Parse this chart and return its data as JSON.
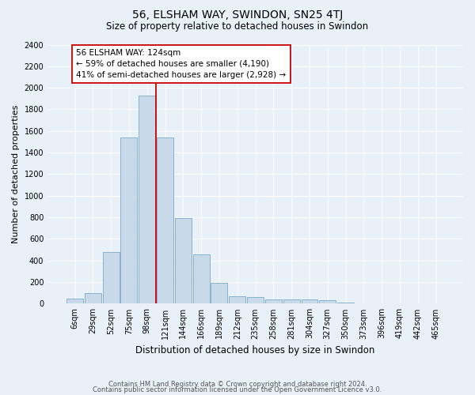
{
  "title": "56, ELSHAM WAY, SWINDON, SN25 4TJ",
  "subtitle": "Size of property relative to detached houses in Swindon",
  "xlabel": "Distribution of detached houses by size in Swindon",
  "ylabel": "Number of detached properties",
  "footer1": "Contains HM Land Registry data © Crown copyright and database right 2024.",
  "footer2": "Contains public sector information licensed under the Open Government Licence v3.0.",
  "annotation_line1": "56 ELSHAM WAY: 124sqm",
  "annotation_line2": "← 59% of detached houses are smaller (4,190)",
  "annotation_line3": "41% of semi-detached houses are larger (2,928) →",
  "bar_color": "#c8d9ea",
  "bar_edge_color": "#7aaac8",
  "vline_color": "#cc0000",
  "vline_bar_index": 5,
  "categories": [
    "6sqm",
    "29sqm",
    "52sqm",
    "75sqm",
    "98sqm",
    "121sqm",
    "144sqm",
    "166sqm",
    "189sqm",
    "212sqm",
    "235sqm",
    "258sqm",
    "281sqm",
    "304sqm",
    "327sqm",
    "350sqm",
    "373sqm",
    "396sqm",
    "419sqm",
    "442sqm",
    "465sqm"
  ],
  "bar_values": [
    50,
    100,
    480,
    1540,
    1930,
    1540,
    790,
    460,
    190,
    70,
    60,
    40,
    40,
    40,
    30,
    10,
    5,
    2,
    1,
    1,
    0
  ],
  "ylim": [
    0,
    2400
  ],
  "yticks": [
    0,
    200,
    400,
    600,
    800,
    1000,
    1200,
    1400,
    1600,
    1800,
    2000,
    2200,
    2400
  ],
  "background_color": "#e8f0f8",
  "grid_color": "#ffffff",
  "title_fontsize": 10,
  "subtitle_fontsize": 8.5,
  "ylabel_fontsize": 8,
  "xlabel_fontsize": 8.5,
  "tick_fontsize": 7,
  "footer_fontsize": 6,
  "annotation_fontsize": 7.5
}
